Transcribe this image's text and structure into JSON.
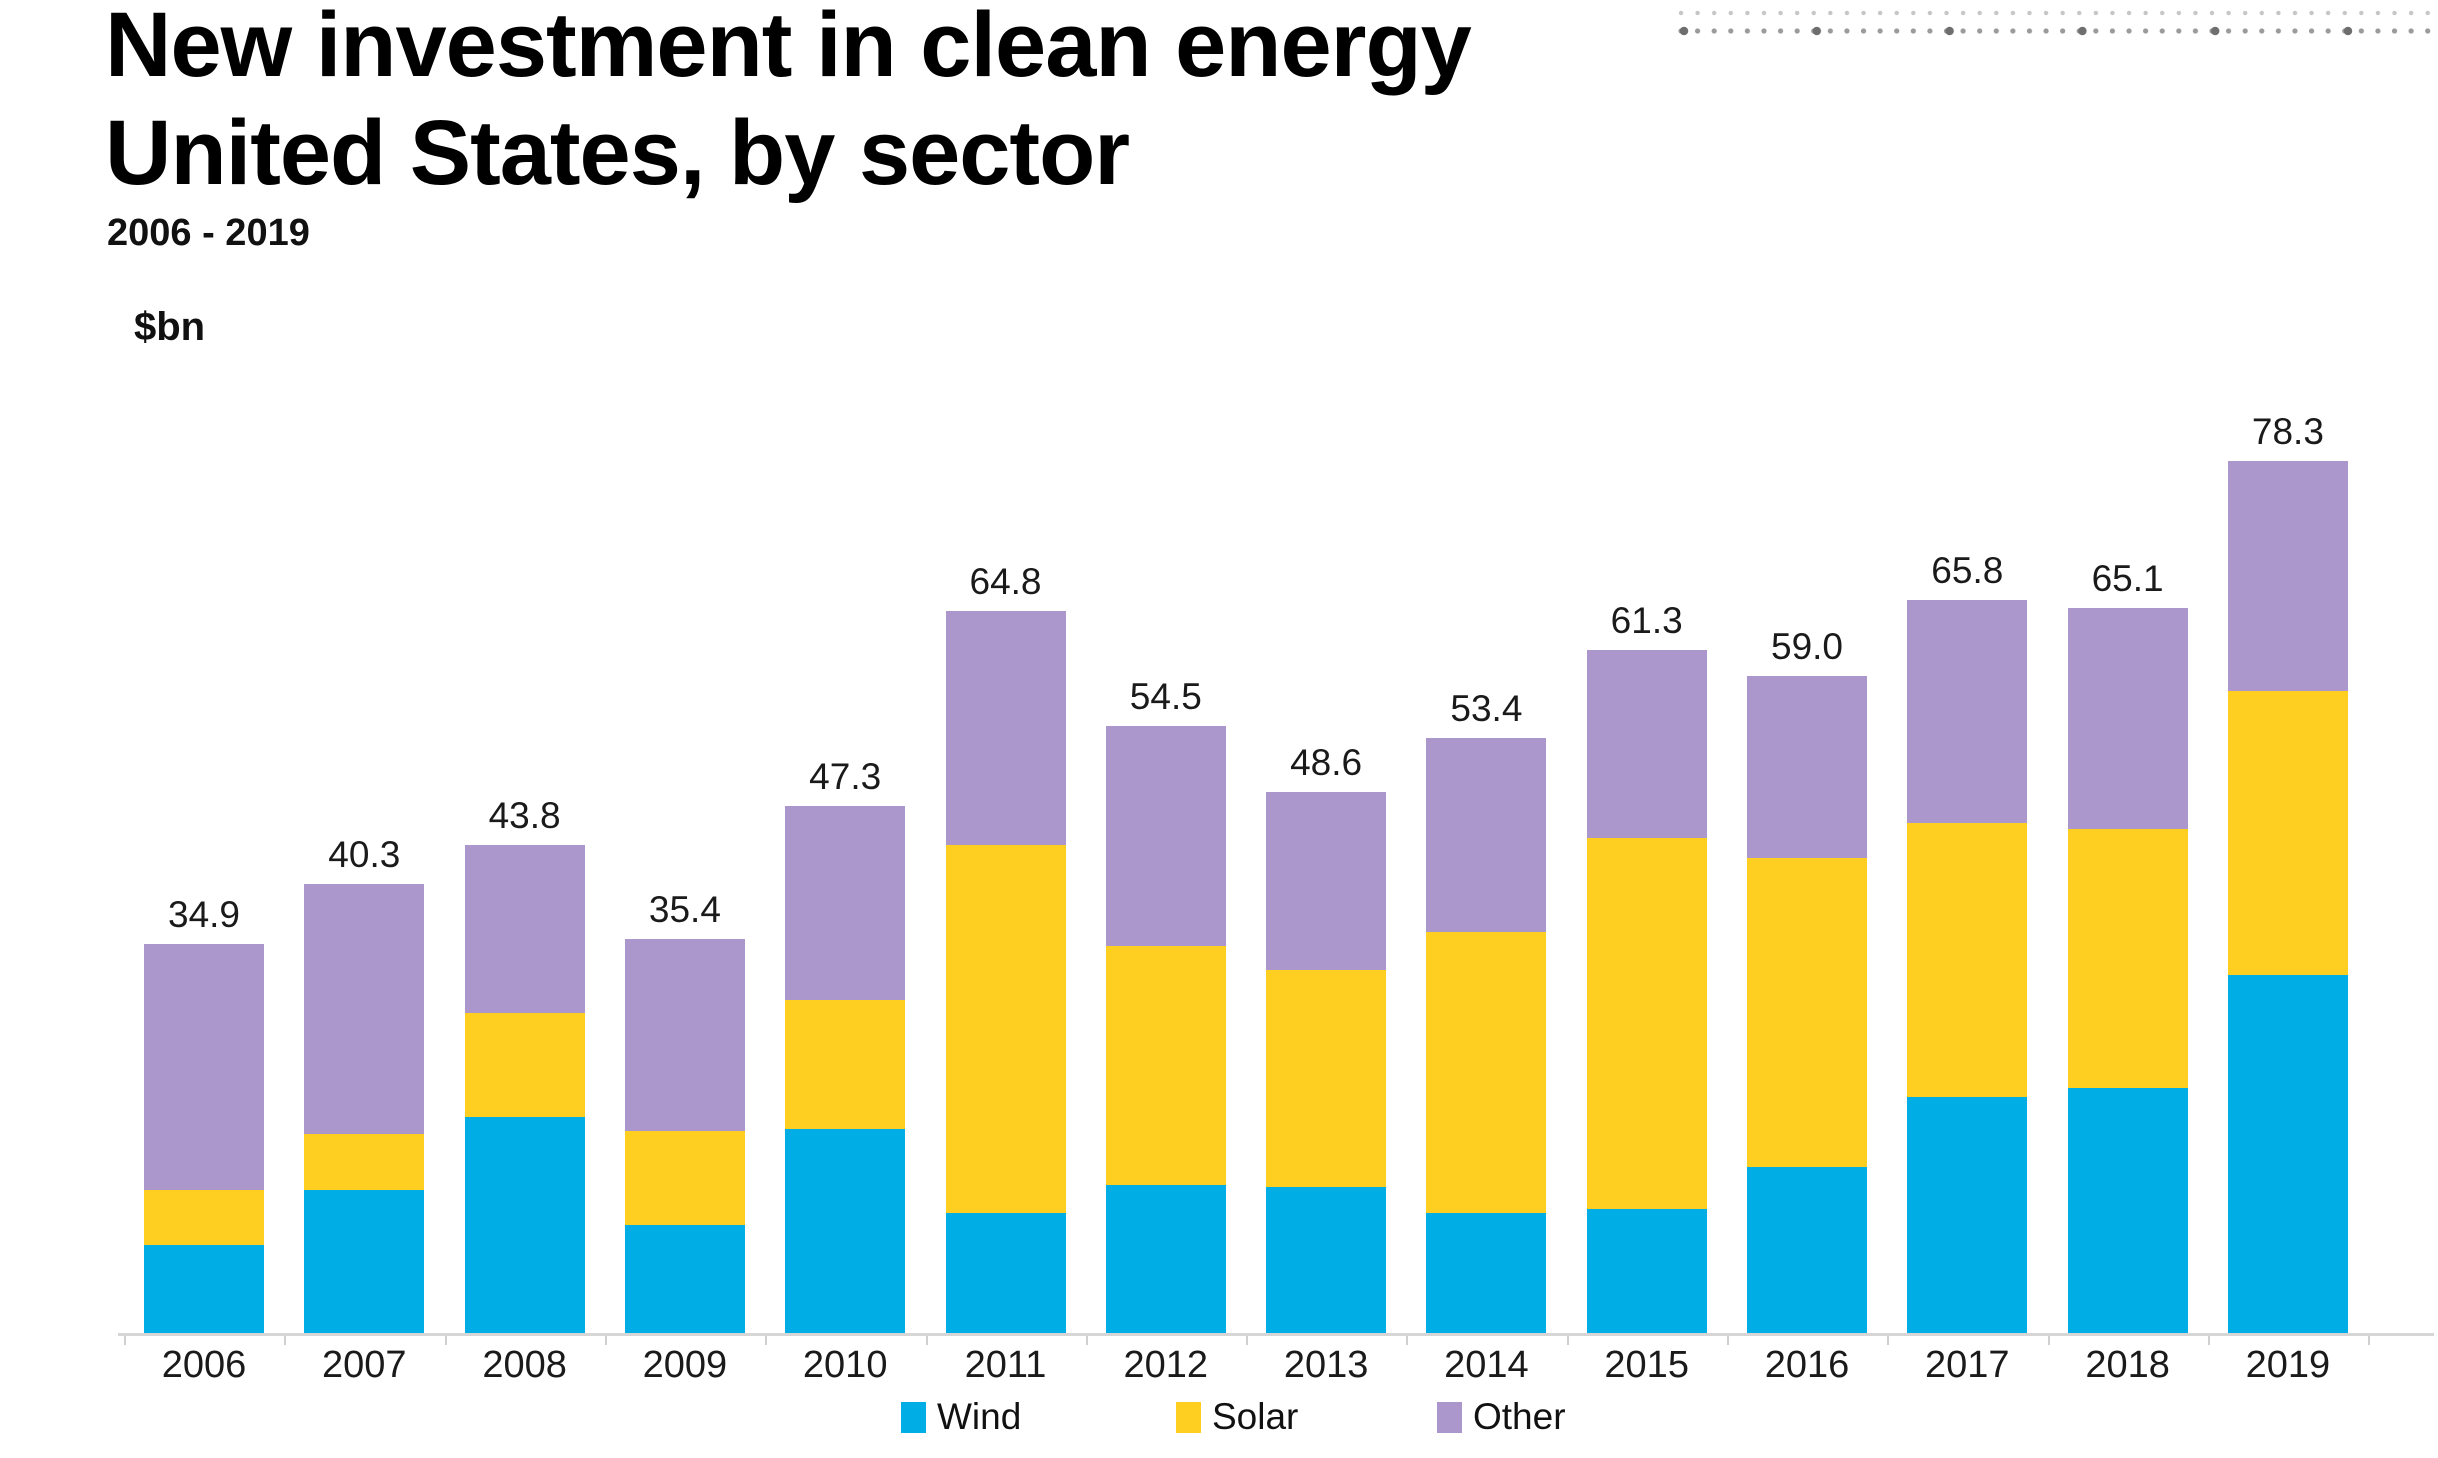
{
  "header": {
    "title": "New investment in clean energy\nUnited States, by sector",
    "subtitle": "2006 - 2019",
    "unit_label": "$bn"
  },
  "legend": [
    {
      "label": "Wind",
      "color": "#00ADE4"
    },
    {
      "label": "Solar",
      "color": "#FECF20"
    },
    {
      "label": "Other",
      "color": "#AB97CC"
    }
  ],
  "chart_data": {
    "type": "bar",
    "stacked": true,
    "title": "New investment in clean energy, United States, by sector",
    "subtitle": "2006 - 2019",
    "unit": "$bn",
    "xlabel": "",
    "ylabel": "$bn",
    "gridlines": false,
    "y_axis_shown": false,
    "value_labels_shown": true,
    "legend_position": "bottom",
    "ylim": [
      0,
      85
    ],
    "categories": [
      "2006",
      "2007",
      "2008",
      "2009",
      "2010",
      "2011",
      "2012",
      "2013",
      "2014",
      "2015",
      "2016",
      "2017",
      "2018",
      "2019"
    ],
    "series": [
      {
        "name": "Wind",
        "color": "#00ADE4",
        "values": [
          7.9,
          12.8,
          19.4,
          9.7,
          18.3,
          10.8,
          13.3,
          13.1,
          10.8,
          11.1,
          14.9,
          21.2,
          22.0,
          32.1
        ]
      },
      {
        "name": "Solar",
        "color": "#FECF20",
        "values": [
          4.9,
          5.1,
          9.3,
          8.4,
          11.6,
          33.0,
          21.4,
          19.5,
          25.2,
          33.3,
          27.7,
          24.6,
          23.2,
          25.5
        ]
      },
      {
        "name": "Other",
        "color": "#AB97CC",
        "values": [
          22.1,
          22.4,
          15.1,
          17.3,
          17.4,
          21.0,
          19.8,
          16.0,
          17.4,
          16.9,
          16.4,
          20.0,
          19.9,
          20.7
        ]
      }
    ],
    "totals": [
      34.9,
      40.3,
      43.8,
      35.4,
      47.3,
      64.8,
      54.5,
      48.6,
      53.4,
      61.3,
      59.0,
      65.8,
      65.1,
      78.3
    ],
    "total_labels": [
      "34.9",
      "40.3",
      "43.8",
      "35.4",
      "47.3",
      "64.8",
      "54.5",
      "48.6",
      "53.4",
      "61.3",
      "59.0",
      "65.8",
      "65.1",
      "78.3"
    ]
  }
}
